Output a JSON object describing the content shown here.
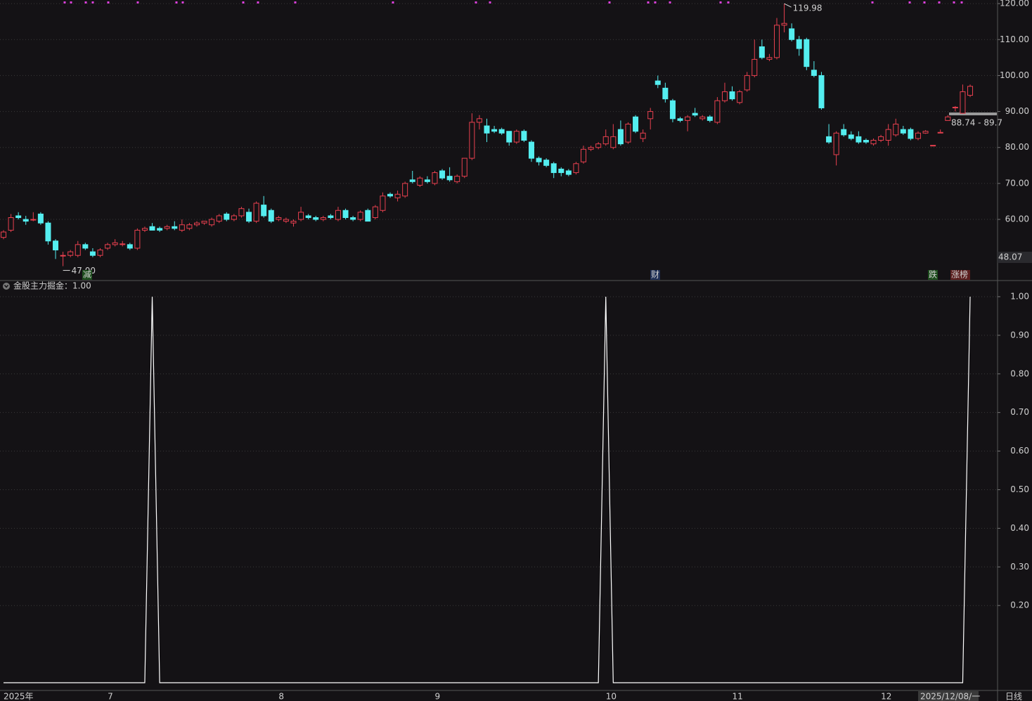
{
  "chart_data": [
    {
      "type": "candlestick",
      "categories": [
        "2025年",
        null,
        null,
        null,
        null,
        null,
        null,
        null,
        null,
        null,
        null,
        null,
        null,
        null,
        "7",
        null,
        null,
        null,
        null,
        null,
        null,
        null,
        null,
        null,
        null,
        null,
        null,
        null,
        null,
        null,
        null,
        null,
        null,
        null,
        null,
        null,
        null,
        "8",
        null,
        null,
        null,
        null,
        null,
        null,
        null,
        null,
        null,
        null,
        null,
        null,
        null,
        null,
        null,
        null,
        null,
        null,
        null,
        null,
        "9",
        null,
        null,
        null,
        null,
        null,
        null,
        null,
        null,
        null,
        null,
        null,
        null,
        null,
        null,
        null,
        null,
        null,
        null,
        null,
        null,
        null,
        null,
        "10",
        null,
        null,
        null,
        null,
        null,
        null,
        null,
        null,
        null,
        null,
        null,
        null,
        null,
        null,
        null,
        null,
        "11",
        null,
        null,
        null,
        null,
        null,
        null,
        null,
        null,
        null,
        null,
        null,
        null,
        null,
        null,
        null,
        null,
        null,
        null,
        null,
        "12",
        null,
        null,
        null,
        null,
        null,
        null,
        null,
        null,
        null,
        null,
        null,
        null
      ],
      "candles": [
        [
          55,
          57,
          54.5,
          56.5
        ],
        [
          57,
          61.5,
          56.5,
          60.5
        ],
        [
          61,
          62,
          60,
          60.5
        ],
        [
          60,
          61,
          58.5,
          59.5
        ],
        [
          60,
          62,
          59.5,
          60
        ],
        [
          61.5,
          62,
          58.5,
          59
        ],
        [
          59,
          59.5,
          53,
          54
        ],
        [
          54,
          54.5,
          49,
          51.5
        ],
        [
          50,
          51,
          47,
          50
        ],
        [
          50,
          51.5,
          49.5,
          51
        ],
        [
          50,
          54,
          49.5,
          53
        ],
        [
          53,
          53.5,
          51.5,
          52
        ],
        [
          51,
          52,
          49.5,
          50
        ],
        [
          50,
          52,
          49.5,
          51.5
        ],
        [
          52,
          53.5,
          51.5,
          53
        ],
        [
          53,
          54.5,
          52.5,
          53.5
        ],
        [
          53,
          54,
          52.5,
          53.2
        ],
        [
          53,
          53.5,
          51.5,
          52
        ],
        [
          52,
          57.5,
          51.5,
          57
        ],
        [
          57,
          58,
          56.5,
          57.5
        ],
        [
          58,
          59,
          57,
          57
        ],
        [
          57.5,
          58,
          56.5,
          57
        ],
        [
          57.5,
          58.5,
          57,
          58
        ],
        [
          58,
          59.5,
          57,
          57.5
        ],
        [
          57,
          60,
          56.5,
          58.5
        ],
        [
          57.5,
          59,
          57,
          58.5
        ],
        [
          58.5,
          59.5,
          58,
          59
        ],
        [
          59,
          59.5,
          58.5,
          59.5
        ],
        [
          58.5,
          60.5,
          58,
          60
        ],
        [
          59.5,
          61.5,
          59,
          61
        ],
        [
          61.5,
          62,
          59.5,
          60
        ],
        [
          60,
          61.5,
          59.5,
          61
        ],
        [
          61,
          63.5,
          60.5,
          63
        ],
        [
          62,
          63,
          59,
          59.5
        ],
        [
          59.5,
          65,
          59,
          64.5
        ],
        [
          64,
          66.5,
          60.5,
          61
        ],
        [
          62.5,
          63,
          59,
          59.5
        ],
        [
          60,
          61,
          59.5,
          60.5
        ],
        [
          59.5,
          60.5,
          59,
          60
        ],
        [
          59,
          60,
          58,
          59.5
        ],
        [
          60,
          63.5,
          59.5,
          62
        ],
        [
          61,
          61.5,
          60,
          60.5
        ],
        [
          60.5,
          61,
          59.5,
          60
        ],
        [
          60,
          61,
          59.5,
          60.5
        ],
        [
          61,
          61.5,
          60,
          60.5
        ],
        [
          60,
          63.5,
          59.5,
          62.5
        ],
        [
          62.5,
          63,
          60,
          60.5
        ],
        [
          60.5,
          61,
          59.5,
          60
        ],
        [
          60,
          62.5,
          59.5,
          62
        ],
        [
          62.5,
          63,
          59.5,
          59.5
        ],
        [
          60.5,
          64,
          60,
          63.5
        ],
        [
          62.5,
          67.5,
          62,
          66.5
        ],
        [
          67,
          67.5,
          66,
          66.5
        ],
        [
          66,
          68,
          65,
          67
        ],
        [
          66.5,
          70.5,
          66,
          70
        ],
        [
          71,
          73.5,
          70,
          70.5
        ],
        [
          69.5,
          72,
          69,
          71.5
        ],
        [
          71,
          72,
          70,
          70.5
        ],
        [
          70,
          73.5,
          69.5,
          73
        ],
        [
          73.5,
          74,
          71,
          71.5
        ],
        [
          72,
          74.5,
          70.5,
          71
        ],
        [
          70.5,
          72.5,
          70,
          72
        ],
        [
          72,
          77,
          71.5,
          77
        ],
        [
          77,
          89.5,
          76.5,
          87
        ],
        [
          87,
          89,
          85,
          88
        ],
        [
          86,
          88,
          81.5,
          84
        ],
        [
          85,
          86,
          84,
          84.5
        ],
        [
          85,
          85.5,
          83.5,
          84
        ],
        [
          84.5,
          84.5,
          80.5,
          81.5
        ],
        [
          81.5,
          85,
          81,
          84.5
        ],
        [
          84.5,
          85,
          81.5,
          82
        ],
        [
          81.5,
          82,
          76,
          77
        ],
        [
          77,
          77.5,
          75,
          76
        ],
        [
          76.5,
          77,
          74.5,
          75
        ],
        [
          75.5,
          76,
          71.5,
          73
        ],
        [
          74,
          74.5,
          72,
          73
        ],
        [
          73.5,
          74,
          72,
          72.5
        ],
        [
          73,
          76,
          72.5,
          75.5
        ],
        [
          76,
          80.5,
          75.5,
          79.5
        ],
        [
          79.5,
          80.5,
          79,
          80
        ],
        [
          80,
          81.5,
          79.5,
          81
        ],
        [
          81,
          85,
          80.5,
          83
        ],
        [
          80,
          86.5,
          79.5,
          83
        ],
        [
          85,
          87.5,
          80.5,
          81
        ],
        [
          81.5,
          87,
          81,
          86.5
        ],
        [
          88.5,
          89,
          84,
          84.5
        ],
        [
          82.5,
          85,
          81.5,
          84
        ],
        [
          88,
          91,
          85,
          90
        ],
        [
          98.5,
          100,
          96.5,
          97.5
        ],
        [
          96.5,
          98,
          92.5,
          93.5
        ],
        [
          93,
          93.5,
          87,
          88
        ],
        [
          88,
          88.5,
          87,
          87.5
        ],
        [
          87.5,
          89,
          84.5,
          88.5
        ],
        [
          89.5,
          91,
          88.5,
          89
        ],
        [
          88,
          89,
          87.5,
          88.5
        ],
        [
          88.5,
          89,
          87,
          87.5
        ],
        [
          87,
          94,
          86.5,
          93
        ],
        [
          93,
          98,
          92.5,
          95.5
        ],
        [
          95.5,
          97,
          93,
          93.5
        ],
        [
          92.5,
          96,
          92,
          95.5
        ],
        [
          96,
          101,
          95.5,
          100
        ],
        [
          100,
          110,
          99.5,
          104.5
        ],
        [
          108,
          110,
          104.5,
          105
        ],
        [
          104.5,
          106,
          104,
          105
        ],
        [
          105,
          116,
          104.5,
          114
        ],
        [
          114,
          119.98,
          112,
          114.5
        ],
        [
          113,
          114.5,
          109.5,
          110
        ],
        [
          110,
          111,
          105.5,
          107.5
        ],
        [
          110,
          110.5,
          101.5,
          102.5
        ],
        [
          101.5,
          104,
          99.5,
          100
        ],
        [
          100,
          101,
          90.5,
          91
        ],
        [
          83,
          86.5,
          81,
          81.5
        ],
        [
          78,
          84.5,
          75,
          84
        ],
        [
          85,
          86.5,
          83,
          83.5
        ],
        [
          83.5,
          84.5,
          82,
          82.5
        ],
        [
          83,
          84.5,
          81,
          81.5
        ],
        [
          82,
          82.5,
          81,
          81.5
        ],
        [
          81,
          82.5,
          80.5,
          82
        ],
        [
          82,
          83.5,
          81.5,
          83
        ],
        [
          82,
          86.5,
          80.5,
          85
        ],
        [
          83.5,
          88,
          83,
          86.5
        ],
        [
          85,
          86,
          83.5,
          84
        ],
        [
          85,
          85.5,
          82,
          82.5
        ],
        [
          82.5,
          84.5,
          82,
          84
        ],
        [
          84,
          84.8,
          83.8,
          84.5
        ],
        [
          80.5,
          80.6,
          80.5,
          80.6
        ],
        [
          84,
          85,
          84,
          84.2
        ],
        [
          87.5,
          89,
          87.5,
          88.5
        ],
        [
          91,
          91.5,
          90,
          91.2
        ],
        [
          89.5,
          97.5,
          89.5,
          95.5
        ],
        [
          94.5,
          97.5,
          94,
          97
        ]
      ],
      "up_color": "#e8404f",
      "down_color": "#54eef0",
      "ylim": [
        43.2,
        121
      ],
      "yticks": [
        {
          "value": 60,
          "label": "60.00"
        },
        {
          "value": 70,
          "label": "70.00"
        },
        {
          "value": 80,
          "label": "80.00"
        },
        {
          "value": 90,
          "label": "90.00"
        },
        {
          "value": 100,
          "label": "100.00"
        },
        {
          "value": 110,
          "label": "110.00"
        },
        {
          "value": 120,
          "label": "120.00"
        }
      ],
      "grid": true,
      "high_label": 119.98,
      "low_label": {
        "value": 47,
        "label": "47.00"
      },
      "axis_marker": 48.07,
      "range_label": "88.74 - 89.7",
      "events": [
        "减",
        "财",
        "跌",
        "涨榜"
      ]
    },
    {
      "type": "line",
      "title": "金股主力掘金：1.00",
      "color": "#ffffff",
      "values": [
        0,
        0,
        0,
        0,
        0,
        0,
        0,
        0,
        0,
        0,
        0,
        0,
        0,
        0,
        0,
        0,
        0,
        0,
        0,
        0,
        1,
        0,
        0,
        0,
        0,
        0,
        0,
        0,
        0,
        0,
        0,
        0,
        0,
        0,
        0,
        0,
        0,
        0,
        0,
        0,
        0,
        0,
        0,
        0,
        0,
        0,
        0,
        0,
        0,
        0,
        0,
        0,
        0,
        0,
        0,
        0,
        0,
        0,
        0,
        0,
        0,
        0,
        0,
        0,
        0,
        0,
        0,
        0,
        0,
        0,
        0,
        0,
        0,
        0,
        0,
        0,
        0,
        0,
        0,
        0,
        0,
        1,
        0,
        0,
        0,
        0,
        0,
        0,
        0,
        0,
        0,
        0,
        0,
        0,
        0,
        0,
        0,
        0,
        0,
        0,
        0,
        0,
        0,
        0,
        0,
        0,
        0,
        0,
        0,
        0,
        0,
        0,
        0,
        0,
        0,
        0,
        0,
        0,
        0,
        0,
        0,
        0,
        0,
        0,
        0,
        0,
        0,
        0,
        0,
        0,
        1
      ],
      "ylim": [
        0,
        1.04
      ],
      "yticks": [
        {
          "value": 1,
          "label": "1.00"
        },
        {
          "value": 0.9,
          "label": "0.90"
        },
        {
          "value": 0.8,
          "label": "0.80"
        },
        {
          "value": 0.7,
          "label": "0.70"
        },
        {
          "value": 0.6,
          "label": "0.60"
        },
        {
          "value": 0.5,
          "label": "0.50"
        },
        {
          "value": 0.4,
          "label": "0.40"
        },
        {
          "value": 0.3,
          "label": "0.30"
        },
        {
          "value": 0.2,
          "label": "0.20"
        }
      ],
      "grid": true
    }
  ],
  "cursor_date": "2025/12/08/一",
  "period": "日线"
}
